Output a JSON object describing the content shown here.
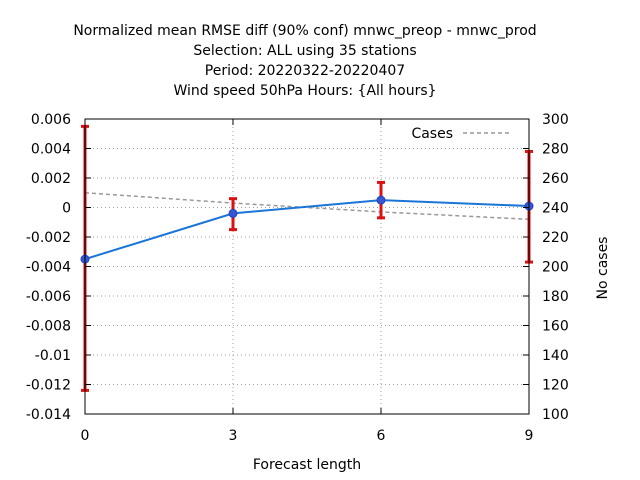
{
  "chart_data": {
    "type": "line",
    "title_lines": [
      "Normalized mean RMSE diff (90% conf) mnwc_preop - mnwc_prod",
      "Selection: ALL using    35 stations",
      "Period: 20220322-20220407",
      "Wind speed 50hPa   Hours: {All hours}"
    ],
    "xlabel": "Forecast length",
    "ylabel_right": "No cases",
    "x_ticks": [
      0,
      3,
      6,
      9
    ],
    "x_tick_labels": [
      "0",
      "3",
      "6",
      "9"
    ],
    "xlim": [
      0,
      9
    ],
    "y_ticks": [
      0.006,
      0.004,
      0.002,
      0,
      -0.002,
      -0.004,
      -0.006,
      -0.008,
      -0.01,
      -0.012,
      -0.014
    ],
    "y_tick_labels": [
      "0.006",
      "0.004",
      "0.002",
      "0",
      "-0.002",
      "-0.004",
      "-0.006",
      "-0.008",
      "-0.01",
      "-0.012",
      "-0.014"
    ],
    "ylim": [
      -0.014,
      0.006
    ],
    "y2_ticks": [
      300,
      280,
      260,
      240,
      220,
      200,
      180,
      160,
      140,
      120,
      100
    ],
    "y2_tick_labels": [
      "300",
      "280",
      "260",
      "240",
      "220",
      "200",
      "180",
      "160",
      "140",
      "120",
      "100"
    ],
    "y2lim": [
      100,
      300
    ],
    "grid": true,
    "legend_placement": "top-right",
    "series": [
      {
        "x": [
          0,
          3,
          6,
          9
        ],
        "y": [
          -0.0035,
          -0.0004,
          0.0005,
          0.0001
        ],
        "err_low": [
          -0.0124,
          -0.0015,
          -0.0007,
          -0.0037
        ],
        "err_high": [
          0.0055,
          0.0006,
          0.0017,
          0.0038
        ],
        "color": "#1a75d8",
        "error_bar_color": "#dd1111",
        "axis": "left"
      },
      {
        "name": "Cases",
        "x": [
          0,
          3,
          6,
          9
        ],
        "y": [
          250,
          243,
          237,
          232
        ],
        "color": "#999999",
        "dashed": true,
        "axis": "right"
      }
    ]
  }
}
